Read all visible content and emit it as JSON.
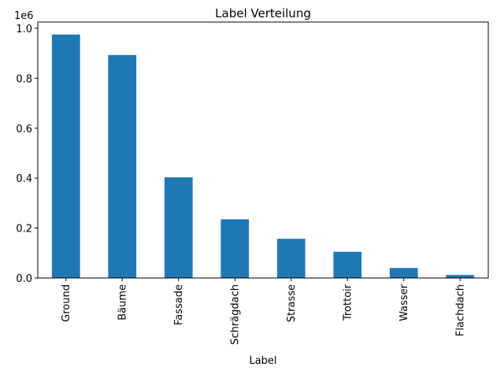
{
  "chart_data": {
    "type": "bar",
    "title": "Label Verteilung",
    "xlabel": "Label",
    "ylabel": "",
    "y_scale_label": "1e6",
    "categories": [
      "Ground",
      "Bäume",
      "Fassade",
      "Schrägdach",
      "Strasse",
      "Trottoir",
      "Wasser",
      "Flachdach"
    ],
    "values": [
      975000,
      893000,
      403000,
      235000,
      157000,
      105000,
      40000,
      12000
    ],
    "ylim": [
      0,
      1025000
    ],
    "yticks": [
      0,
      200000,
      400000,
      600000,
      800000,
      1000000
    ],
    "ytick_labels": [
      "0.0",
      "0.2",
      "0.4",
      "0.6",
      "0.8",
      "1.0"
    ],
    "bar_color": "#1f77b4",
    "grid": false,
    "legend": "none"
  }
}
